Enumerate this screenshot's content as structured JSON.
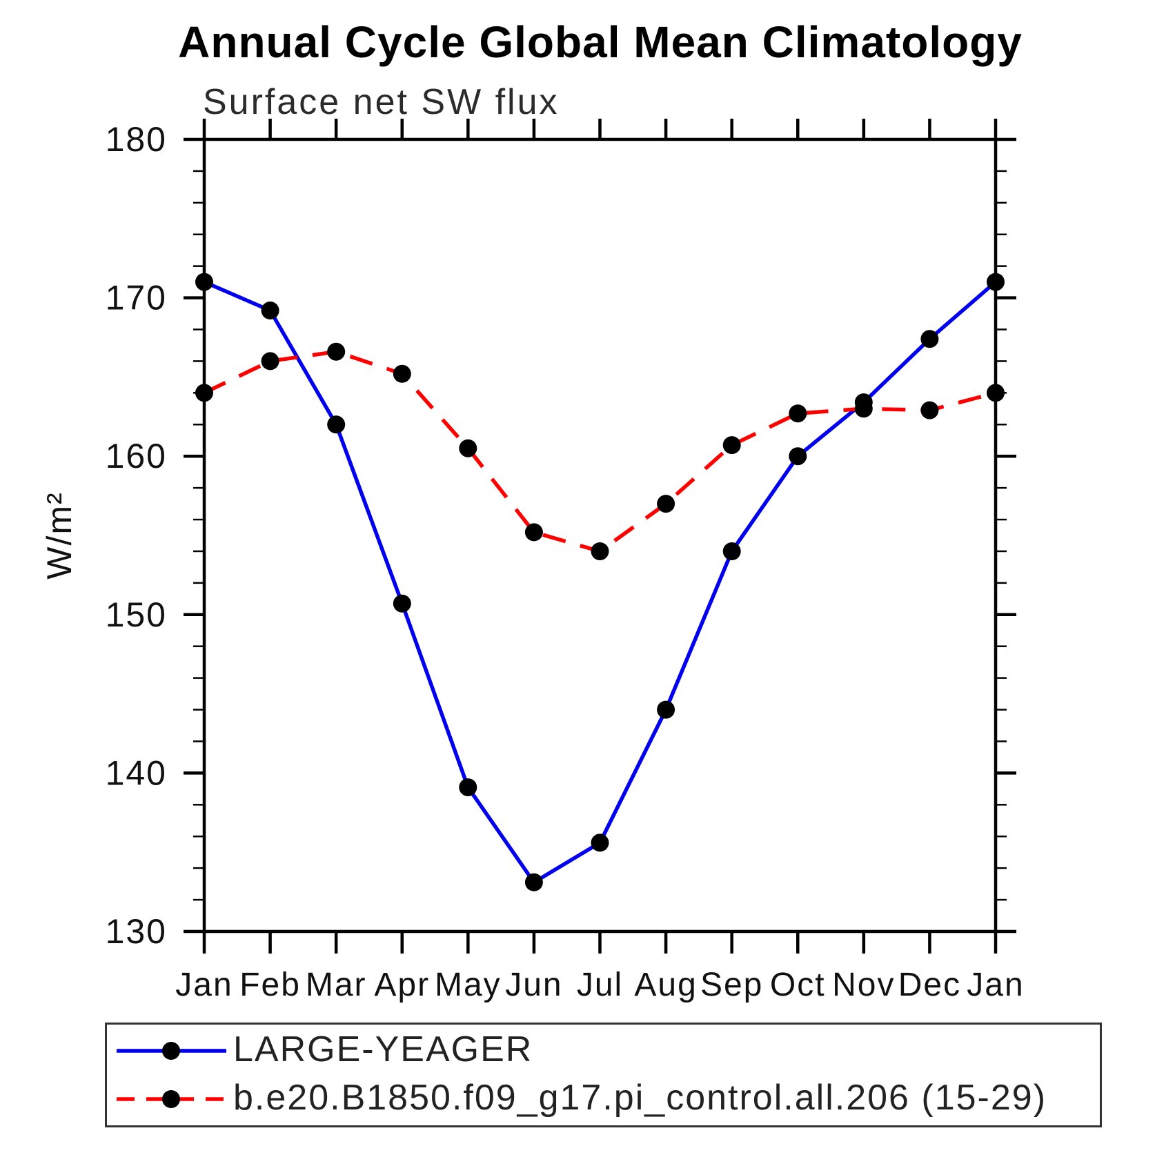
{
  "title": "Annual Cycle Global Mean Climatology",
  "subtitle": "Surface net SW flux",
  "chart_data": {
    "type": "line",
    "categories": [
      "Jan",
      "Feb",
      "Mar",
      "Apr",
      "May",
      "Jun",
      "Jul",
      "Aug",
      "Sep",
      "Oct",
      "Nov",
      "Dec",
      "Jan"
    ],
    "series": [
      {
        "name": "LARGE-YEAGER",
        "color": "#0000ee",
        "line_style": "solid",
        "marker": "filled-circle",
        "marker_color": "#000000",
        "values": [
          171.0,
          169.2,
          162.0,
          150.7,
          139.1,
          133.1,
          135.6,
          144.0,
          154.0,
          160.0,
          163.4,
          167.4,
          171.0
        ]
      },
      {
        "name": "b.e20.B1850.f09_g17.pi_control.all.206 (15-29)",
        "color": "#ff0000",
        "line_style": "dashed",
        "marker": "filled-circle",
        "marker_color": "#000000",
        "values": [
          164.0,
          166.0,
          166.6,
          165.2,
          160.5,
          155.2,
          154.0,
          157.0,
          160.7,
          162.7,
          163.0,
          162.9,
          164.0
        ]
      }
    ],
    "xlabel": "",
    "ylabel": "W/m²",
    "ylim": [
      130,
      180
    ],
    "ytick_major": 10,
    "ytick_minor": 2,
    "y_tick_labels": [
      "130",
      "140",
      "150",
      "160",
      "170",
      "180"
    ],
    "grid": false,
    "legend_position": "bottom-left"
  }
}
